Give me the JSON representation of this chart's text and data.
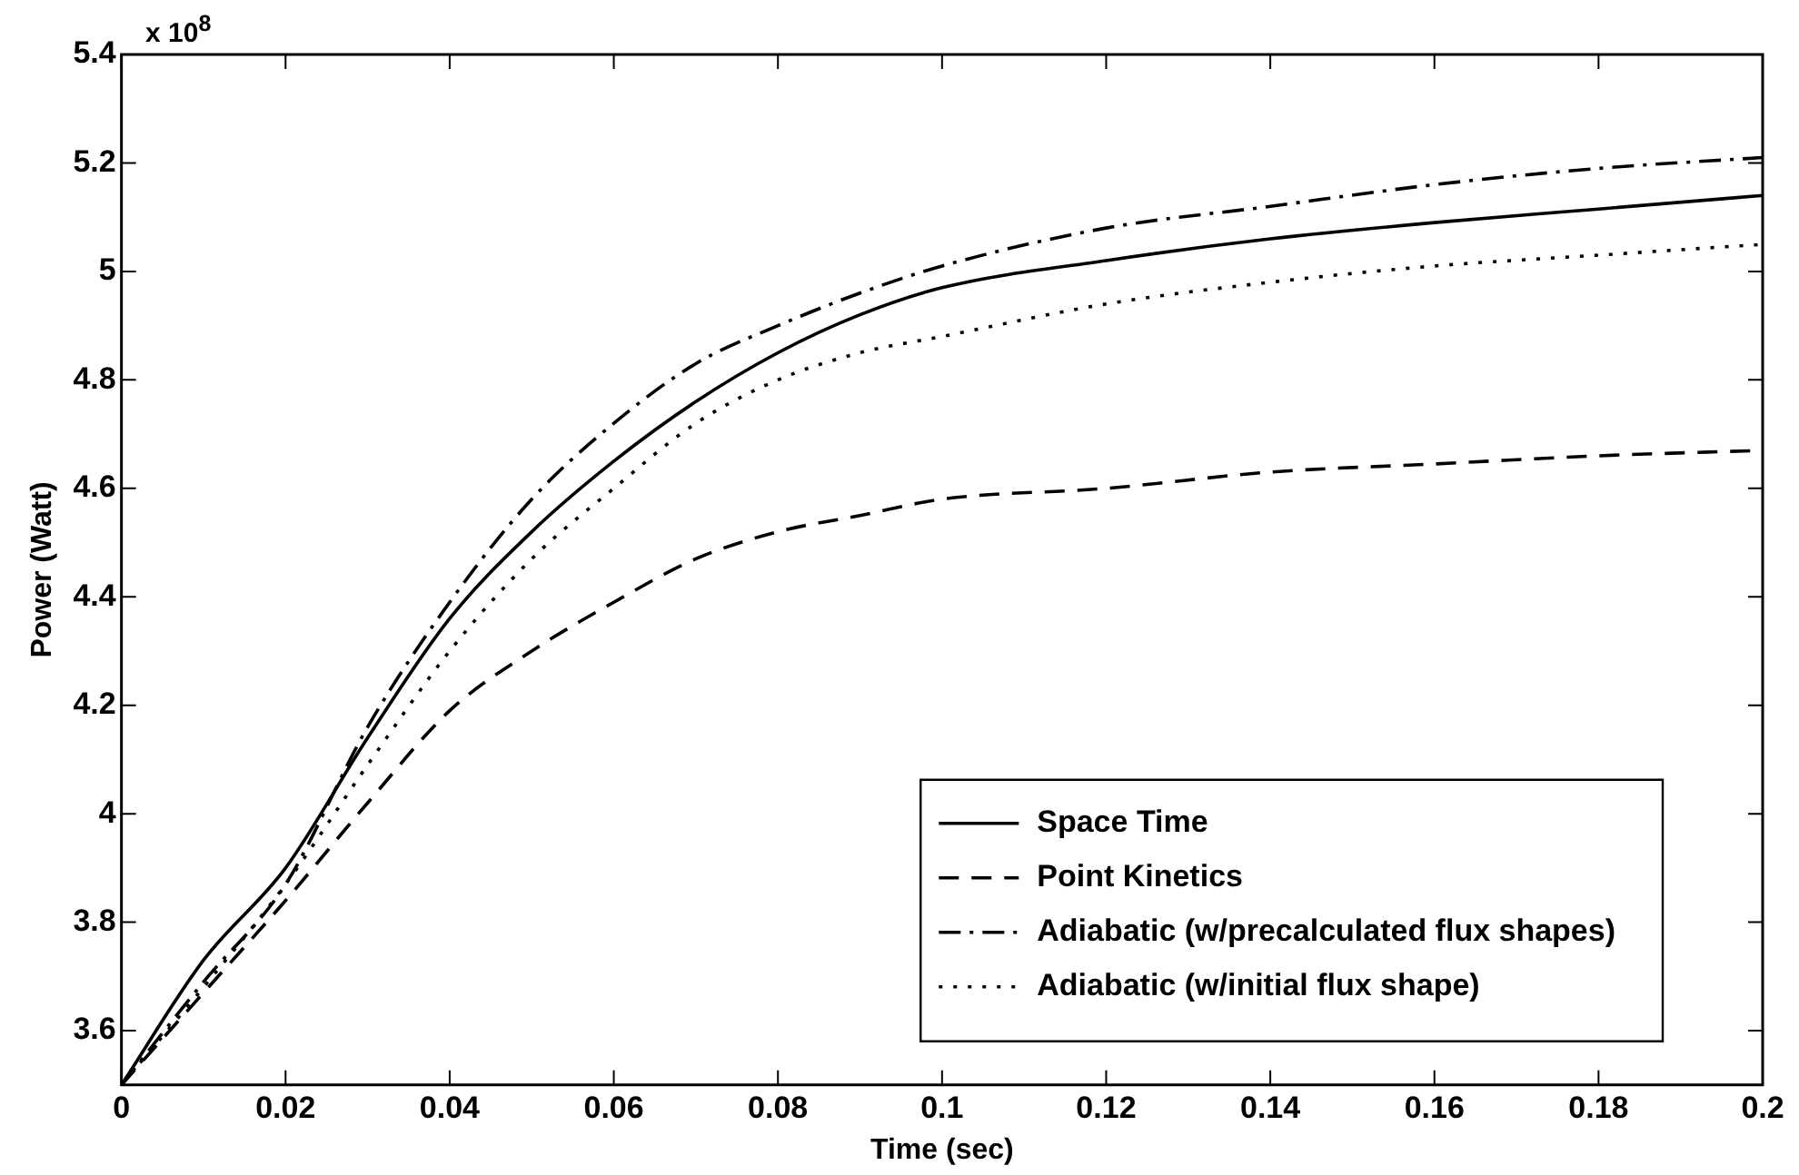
{
  "chart_data": {
    "type": "line",
    "xlabel": "Time (sec)",
    "ylabel": "Power (Watt)",
    "annotations": [
      "x 10$^{8}$"
    ],
    "x": [
      0,
      0.01,
      0.02,
      0.03,
      0.04,
      0.05,
      0.06,
      0.07,
      0.08,
      0.09,
      0.1,
      0.12,
      0.14,
      0.16,
      0.18,
      0.2
    ],
    "series": [
      {
        "name": "Space Time",
        "color": "#000000",
        "line_style": "solid",
        "values": [
          3.5,
          3.73,
          3.9,
          4.14,
          4.36,
          4.52,
          4.65,
          4.76,
          4.85,
          4.92,
          4.97,
          5.02,
          5.06,
          5.09,
          5.115,
          5.14
        ]
      },
      {
        "name": "Point Kinetics",
        "color": "#000000",
        "line_style": "dashed",
        "values": [
          3.5,
          3.67,
          3.84,
          4.02,
          4.19,
          4.3,
          4.39,
          4.47,
          4.52,
          4.55,
          4.58,
          4.6,
          4.63,
          4.645,
          4.66,
          4.67
        ]
      },
      {
        "name": "Adiabatic (w/precalculated flux shapes)",
        "color": "#000000",
        "line_style": "dashdot",
        "values": [
          3.5,
          3.69,
          3.87,
          4.16,
          4.39,
          4.58,
          4.72,
          4.83,
          4.9,
          4.96,
          5.01,
          5.08,
          5.12,
          5.16,
          5.19,
          5.21
        ]
      },
      {
        "name": "Adiabatic (w/initial flux shape)",
        "color": "#000000",
        "line_style": "dotted",
        "values": [
          3.5,
          3.68,
          3.87,
          4.09,
          4.3,
          4.47,
          4.6,
          4.72,
          4.8,
          4.85,
          4.88,
          4.94,
          4.98,
          5.01,
          5.03,
          5.05
        ]
      }
    ],
    "xlim": [
      0,
      0.2
    ],
    "xticks": [
      0,
      0.02,
      0.04,
      0.06,
      0.08,
      0.1,
      0.12,
      0.14,
      0.16,
      0.18,
      0.2
    ],
    "ylim": [
      3.5,
      5.4
    ],
    "yticks": [
      3.6,
      3.8,
      4,
      4.2,
      4.4,
      4.6,
      4.8,
      5,
      5.2,
      5.4
    ],
    "grid": false,
    "legend": "bottom right",
    "marker": "none"
  }
}
